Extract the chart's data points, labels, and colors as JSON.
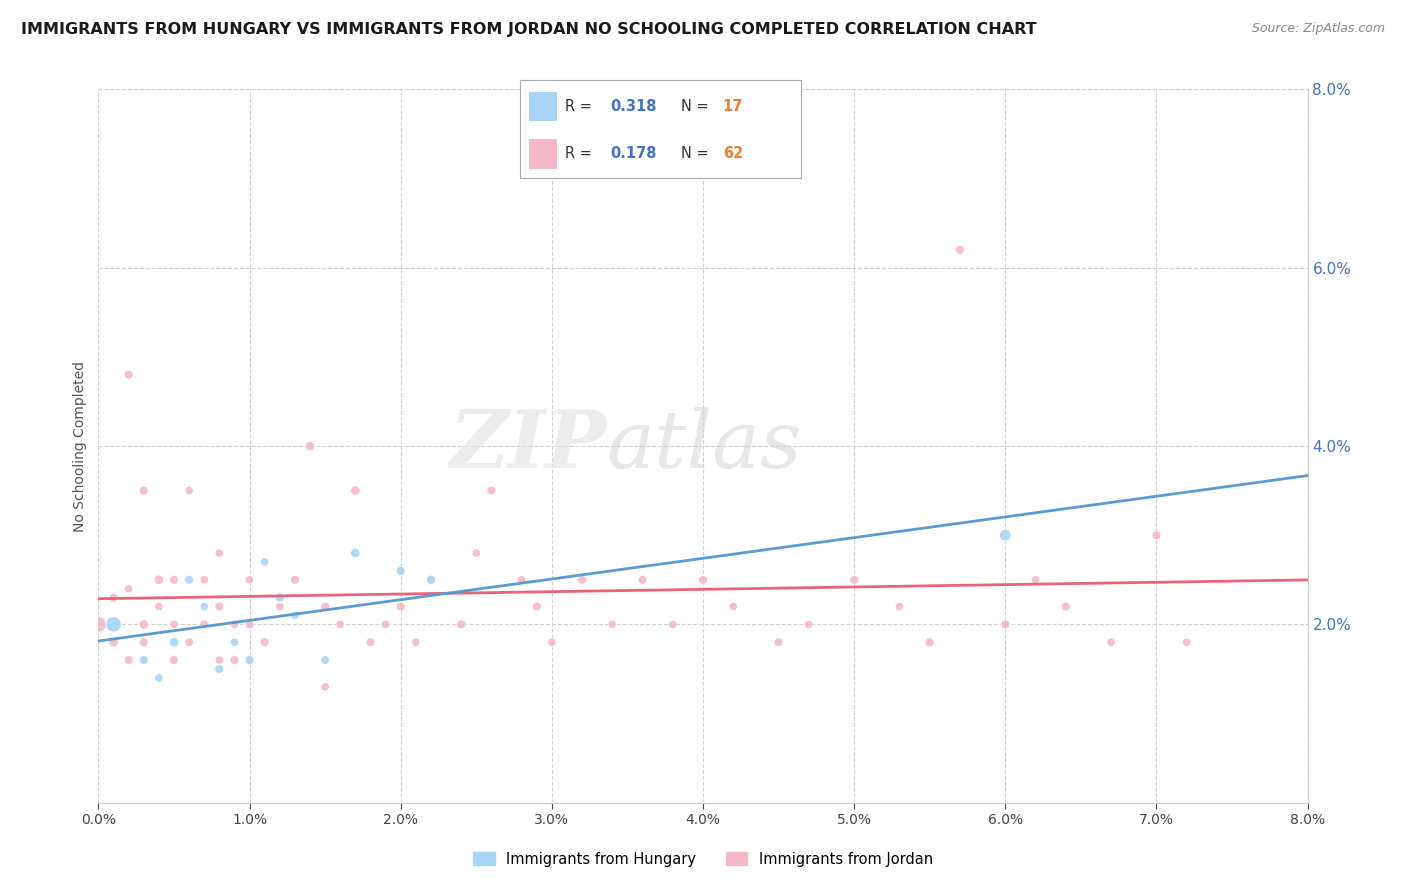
{
  "title": "IMMIGRANTS FROM HUNGARY VS IMMIGRANTS FROM JORDAN NO SCHOOLING COMPLETED CORRELATION CHART",
  "source": "Source: ZipAtlas.com",
  "ylabel": "No Schooling Completed",
  "xmin": 0.0,
  "xmax": 0.08,
  "ymin": 0.0,
  "ymax": 0.08,
  "r_hungary": 0.318,
  "n_hungary": 17,
  "r_jordan": 0.178,
  "n_jordan": 62,
  "color_hungary": "#a8d4f5",
  "color_jordan": "#f5b8c8",
  "line_color_hungary": "#5b9bd5",
  "line_color_jordan": "#e8637a",
  "hungary_x": [
    0.001,
    0.003,
    0.004,
    0.005,
    0.006,
    0.007,
    0.008,
    0.009,
    0.01,
    0.011,
    0.012,
    0.013,
    0.015,
    0.017,
    0.02,
    0.022,
    0.06
  ],
  "hungary_y": [
    0.02,
    0.016,
    0.014,
    0.018,
    0.025,
    0.022,
    0.015,
    0.018,
    0.016,
    0.027,
    0.023,
    0.021,
    0.016,
    0.028,
    0.026,
    0.025,
    0.03
  ],
  "hungary_sizes": [
    120,
    40,
    35,
    45,
    40,
    35,
    40,
    35,
    40,
    35,
    40,
    35,
    40,
    45,
    40,
    40,
    70
  ],
  "jordan_x": [
    0.0,
    0.001,
    0.001,
    0.002,
    0.002,
    0.003,
    0.003,
    0.004,
    0.004,
    0.005,
    0.005,
    0.006,
    0.006,
    0.007,
    0.007,
    0.008,
    0.008,
    0.009,
    0.009,
    0.01,
    0.01,
    0.011,
    0.012,
    0.013,
    0.014,
    0.015,
    0.016,
    0.017,
    0.018,
    0.019,
    0.02,
    0.021,
    0.022,
    0.024,
    0.025,
    0.026,
    0.028,
    0.029,
    0.03,
    0.032,
    0.034,
    0.036,
    0.038,
    0.04,
    0.042,
    0.045,
    0.047,
    0.05,
    0.053,
    0.055,
    0.057,
    0.06,
    0.062,
    0.064,
    0.067,
    0.07,
    0.072,
    0.002,
    0.003,
    0.005,
    0.008,
    0.015
  ],
  "jordan_y": [
    0.02,
    0.018,
    0.023,
    0.016,
    0.024,
    0.02,
    0.018,
    0.022,
    0.025,
    0.016,
    0.02,
    0.018,
    0.035,
    0.02,
    0.025,
    0.022,
    0.028,
    0.016,
    0.02,
    0.02,
    0.025,
    0.018,
    0.022,
    0.025,
    0.04,
    0.022,
    0.02,
    0.035,
    0.018,
    0.02,
    0.022,
    0.018,
    0.025,
    0.02,
    0.028,
    0.035,
    0.025,
    0.022,
    0.018,
    0.025,
    0.02,
    0.025,
    0.02,
    0.025,
    0.022,
    0.018,
    0.02,
    0.025,
    0.022,
    0.018,
    0.062,
    0.02,
    0.025,
    0.022,
    0.018,
    0.03,
    0.018,
    0.048,
    0.035,
    0.025,
    0.016,
    0.013
  ],
  "jordan_sizes": [
    120,
    45,
    40,
    40,
    35,
    45,
    40,
    35,
    45,
    40,
    35,
    40,
    35,
    40,
    35,
    40,
    35,
    40,
    35,
    40,
    35,
    40,
    35,
    40,
    45,
    40,
    35,
    45,
    40,
    35,
    40,
    35,
    45,
    40,
    35,
    40,
    35,
    40,
    35,
    40,
    35,
    40,
    35,
    40,
    35,
    40,
    35,
    40,
    35,
    40,
    40,
    40,
    35,
    40,
    35,
    40,
    35,
    40,
    40,
    40,
    35,
    35
  ],
  "legend_r_color": "#4472c4",
  "legend_n_color": "#ed7d31",
  "ytick_color": "#4472c4"
}
